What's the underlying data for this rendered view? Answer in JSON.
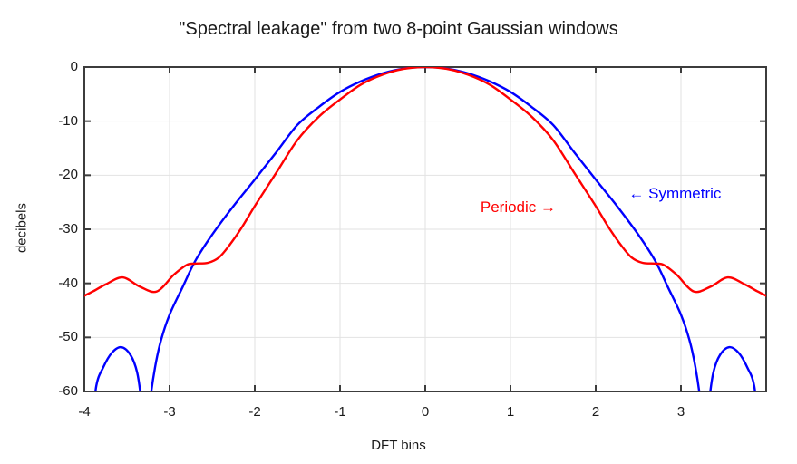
{
  "page": {
    "background": "#ffffff"
  },
  "chart_data": {
    "type": "line",
    "title": "\"Spectral leakage\" from two 8-point Gaussian windows",
    "xlabel": "DFT bins",
    "ylabel": "decibels",
    "xlim": [
      -4,
      4
    ],
    "ylim": [
      -60,
      0
    ],
    "grid": true,
    "grid_color": "#e2e2e2",
    "frame_color": "#3c3c3c",
    "x_ticks": [
      -4,
      -3,
      -2,
      -1,
      0,
      1,
      2,
      3
    ],
    "y_ticks": [
      0,
      -10,
      -20,
      -30,
      -40,
      -50,
      -60
    ],
    "x_gridlines": [
      -3,
      -2,
      -1,
      0,
      1,
      2,
      3
    ],
    "y_gridlines": [
      -10,
      -20,
      -30,
      -40,
      -50
    ],
    "series": [
      {
        "name": "Symmetric",
        "color": "#0000ff",
        "mirror": true,
        "points": [
          [
            0,
            0
          ],
          [
            0.25,
            -0.28
          ],
          [
            0.5,
            -1.15
          ],
          [
            0.75,
            -2.6
          ],
          [
            1.0,
            -4.6
          ],
          [
            1.25,
            -7.4
          ],
          [
            1.5,
            -10.7
          ],
          [
            1.75,
            -15.8
          ],
          [
            2.0,
            -20.8
          ],
          [
            2.25,
            -25.7
          ],
          [
            2.5,
            -31.0
          ],
          [
            2.7,
            -35.9
          ],
          [
            2.85,
            -40.8
          ],
          [
            3.0,
            -45.8
          ],
          [
            3.1,
            -50.5
          ],
          [
            3.17,
            -55.5
          ],
          [
            3.23,
            -62
          ],
          [
            3.28,
            -71
          ],
          [
            3.33,
            -62
          ],
          [
            3.38,
            -56.5
          ],
          [
            3.46,
            -53.2
          ],
          [
            3.57,
            -51.8
          ],
          [
            3.68,
            -52.9
          ],
          [
            3.78,
            -55.6
          ],
          [
            3.86,
            -59.0
          ],
          [
            3.93,
            -68
          ],
          [
            4.0,
            -66
          ]
        ]
      },
      {
        "name": "Periodic",
        "color": "#ff0000",
        "mirror": true,
        "points": [
          [
            0,
            0
          ],
          [
            0.25,
            -0.33
          ],
          [
            0.5,
            -1.4
          ],
          [
            0.75,
            -3.2
          ],
          [
            1.0,
            -6.0
          ],
          [
            1.25,
            -9.2
          ],
          [
            1.5,
            -13.5
          ],
          [
            1.75,
            -19.6
          ],
          [
            2.0,
            -25.7
          ],
          [
            2.15,
            -29.6
          ],
          [
            2.3,
            -33.0
          ],
          [
            2.42,
            -35.2
          ],
          [
            2.55,
            -36.2
          ],
          [
            2.7,
            -36.35
          ],
          [
            2.8,
            -36.6
          ],
          [
            2.95,
            -38.4
          ],
          [
            3.15,
            -41.5
          ],
          [
            3.35,
            -40.6
          ],
          [
            3.55,
            -38.9
          ],
          [
            3.75,
            -40.2
          ],
          [
            3.9,
            -41.5
          ],
          [
            4.0,
            -42.3
          ]
        ]
      }
    ],
    "annotations": [
      {
        "id": "periodic",
        "text": "Periodic →",
        "color": "#ff0000",
        "x": 1.09,
        "y": -26.2
      },
      {
        "id": "symmetric",
        "text": "← Symmetric",
        "color": "#0000ff",
        "x": 2.93,
        "y": -23.6
      }
    ]
  }
}
